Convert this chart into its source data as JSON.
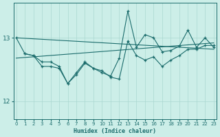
{
  "xlabel": "Humidex (Indice chaleur)",
  "bg_color": "#cceee8",
  "line_color": "#1a6b6b",
  "grid_color": "#aad8d0",
  "x_ticks": [
    0,
    1,
    2,
    3,
    4,
    5,
    6,
    7,
    8,
    9,
    10,
    11,
    12,
    13,
    14,
    15,
    16,
    17,
    18,
    19,
    20,
    21,
    22,
    23
  ],
  "y_ticks": [
    12,
    13
  ],
  "ylim": [
    11.72,
    13.55
  ],
  "xlim": [
    -0.3,
    23.3
  ],
  "trend1_x": [
    0,
    23
  ],
  "trend1_y": [
    13.0,
    12.82
  ],
  "trend2_x": [
    0,
    23
  ],
  "trend2_y": [
    12.68,
    12.92
  ],
  "series1_x": [
    0,
    1,
    2,
    3,
    4,
    5,
    6,
    7,
    8,
    9,
    10,
    11,
    12,
    13,
    14,
    15,
    16,
    17,
    18,
    19,
    20,
    21,
    22,
    23
  ],
  "series1_y": [
    13.0,
    12.75,
    12.72,
    12.62,
    12.62,
    12.55,
    12.28,
    12.45,
    12.62,
    12.52,
    12.45,
    12.4,
    12.68,
    13.42,
    12.85,
    13.05,
    13.0,
    12.78,
    12.8,
    12.87,
    13.12,
    12.85,
    13.0,
    12.85
  ],
  "series2_x": [
    1,
    2,
    3,
    4,
    5,
    6,
    7,
    8,
    9,
    10,
    11,
    12,
    13,
    14,
    15,
    16,
    17,
    18,
    19,
    20,
    21,
    22,
    23
  ],
  "series2_y": [
    12.75,
    12.72,
    12.55,
    12.55,
    12.52,
    12.28,
    12.42,
    12.6,
    12.52,
    12.48,
    12.38,
    12.35,
    12.95,
    12.72,
    12.65,
    12.7,
    12.55,
    12.65,
    12.72,
    12.82,
    12.82,
    12.88,
    12.88
  ]
}
